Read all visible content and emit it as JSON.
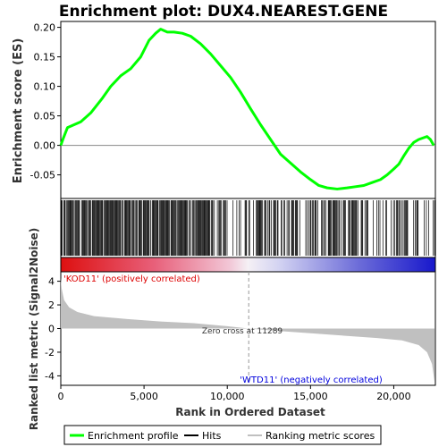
{
  "title": "Enrichment plot: DUX4.NEAREST.GENE",
  "chart_data": [
    {
      "type": "line",
      "panel": "enrichment",
      "ylabel": "Enrichment score (ES)",
      "ylim": [
        -0.09,
        0.21
      ],
      "yticks": [
        "0.20",
        "0.15",
        "0.10",
        "0.05",
        "0.00",
        "-0.05"
      ],
      "ytick_values": [
        0.2,
        0.15,
        0.1,
        0.05,
        0.0,
        -0.05
      ],
      "line_color": "#00ff00",
      "x": [
        0,
        150,
        400,
        800,
        1200,
        1800,
        2500,
        3000,
        3600,
        4200,
        4800,
        5300,
        5700,
        6000,
        6400,
        6800,
        7300,
        7800,
        8400,
        9000,
        9600,
        10200,
        10800,
        11400,
        12000,
        12600,
        13200,
        13800,
        14400,
        15000,
        15500,
        16000,
        16600,
        17200,
        17700,
        18200,
        18700,
        19200,
        19600,
        20000,
        20300,
        20600,
        20900,
        21200,
        21500,
        21800,
        22000,
        22200,
        22400
      ],
      "y": [
        0.0,
        0.012,
        0.03,
        0.035,
        0.04,
        0.055,
        0.08,
        0.1,
        0.118,
        0.13,
        0.15,
        0.178,
        0.19,
        0.197,
        0.192,
        0.192,
        0.19,
        0.185,
        0.172,
        0.155,
        0.135,
        0.115,
        0.09,
        0.062,
        0.035,
        0.01,
        -0.015,
        -0.03,
        -0.045,
        -0.058,
        -0.068,
        -0.072,
        -0.074,
        -0.072,
        -0.07,
        -0.068,
        -0.063,
        -0.058,
        -0.05,
        -0.04,
        -0.032,
        -0.018,
        -0.005,
        0.005,
        0.01,
        0.013,
        0.015,
        0.01,
        0.0
      ]
    },
    {
      "type": "heatmap",
      "panel": "hits",
      "hit_density": [
        {
          "from": 0,
          "to": 9000,
          "density": 0.85
        },
        {
          "from": 9000,
          "to": 11300,
          "density": 0.45
        },
        {
          "from": 11300,
          "to": 17500,
          "density": 0.6
        },
        {
          "from": 17500,
          "to": 21700,
          "density": 0.45
        },
        {
          "from": 21700,
          "to": 22500,
          "density": 0.15
        }
      ],
      "colorbar": [
        {
          "at": 0,
          "color": "#dd1010"
        },
        {
          "at": 0.25,
          "color": "#e8607a"
        },
        {
          "at": 0.45,
          "color": "#f2c6d6"
        },
        {
          "at": 0.5,
          "color": "#f5f0f5"
        },
        {
          "at": 0.58,
          "color": "#d4d4f2"
        },
        {
          "at": 0.8,
          "color": "#6a6ad8"
        },
        {
          "at": 1,
          "color": "#1818cc"
        }
      ]
    },
    {
      "type": "area",
      "panel": "ranked_list",
      "xlabel": "Rank in Ordered Dataset",
      "ylabel": "Ranked list metric (Signal2Noise)",
      "ylim": [
        -4.8,
        4.8
      ],
      "yticks": [
        "4",
        "2",
        "0",
        "-2",
        "-4"
      ],
      "ytick_values": [
        4,
        2,
        0,
        -2,
        -4
      ],
      "xlim": [
        0,
        22500
      ],
      "xticks": [
        "0",
        "5,000",
        "10,000",
        "15,000",
        "20,000"
      ],
      "xtick_values": [
        0,
        5000,
        10000,
        15000,
        20000
      ],
      "x": [
        0,
        50,
        200,
        500,
        1000,
        2000,
        4000,
        6000,
        8000,
        10000,
        11289,
        13000,
        15000,
        17000,
        19000,
        20500,
        21500,
        22000,
        22300,
        22450
      ],
      "y": [
        4.3,
        3.4,
        2.4,
        1.8,
        1.4,
        1.05,
        0.8,
        0.6,
        0.45,
        0.2,
        0.0,
        -0.2,
        -0.4,
        -0.6,
        -0.8,
        -1.0,
        -1.4,
        -2.0,
        -3.0,
        -4.5
      ],
      "fill_color": "#c0c0c0",
      "zero_cross_label": "Zero cross at 11289",
      "zero_cross_rank": 11289,
      "pos_label": "'KOD11' (positively correlated)",
      "neg_label": "'WTD11' (negatively correlated)",
      "pos_color": "#dd0000",
      "neg_color": "#0000dd"
    }
  ],
  "legend": {
    "items": [
      {
        "label": "Enrichment profile",
        "color": "#00ff00"
      },
      {
        "label": "Hits",
        "color": "#000000"
      },
      {
        "label": "Ranking metric scores",
        "color": "#c0c0c0"
      }
    ]
  }
}
